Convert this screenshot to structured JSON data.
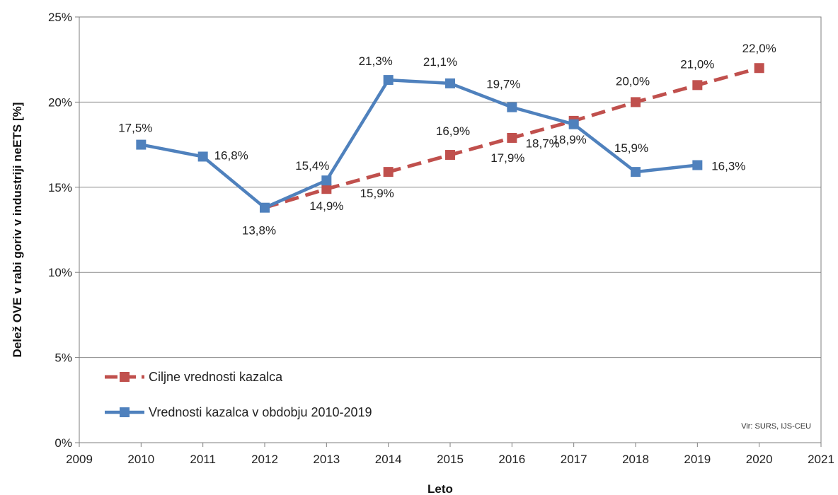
{
  "chart_data": {
    "type": "line",
    "xlabel": "Leto",
    "ylabel": "Delež OVE v rabi goriv v industriji neETS [%]",
    "xlim": [
      2009,
      2021
    ],
    "ylim": [
      0,
      25
    ],
    "x_ticks": [
      "2009",
      "2010",
      "2011",
      "2012",
      "2013",
      "2014",
      "2015",
      "2016",
      "2017",
      "2018",
      "2019",
      "2020",
      "2021"
    ],
    "y_ticks": [
      "0%",
      "5%",
      "10%",
      "15%",
      "20%",
      "25%"
    ],
    "grid": true,
    "legend": "bottom-left",
    "source": "Vir: SURS, IJS-CEU",
    "series": [
      {
        "name": "Ciljne vrednosti kazalca",
        "color": "#c0504d",
        "style": "dashed",
        "x": [
          2012,
          2013,
          2014,
          2015,
          2016,
          2017,
          2018,
          2019,
          2020
        ],
        "values": [
          13.8,
          14.9,
          15.9,
          16.9,
          17.9,
          18.9,
          20.0,
          21.0,
          22.0
        ],
        "labels": [
          "",
          "14,9%",
          "15,9%",
          "16,9%",
          "17,9%",
          "18,9%",
          "20,0%",
          "21,0%",
          "22,0%"
        ]
      },
      {
        "name": "Vrednosti kazalca v obdobju 2010-2019",
        "color": "#4f81bd",
        "style": "solid",
        "x": [
          2010,
          2011,
          2012,
          2013,
          2014,
          2015,
          2016,
          2017,
          2018,
          2019
        ],
        "values": [
          17.5,
          16.8,
          13.8,
          15.4,
          21.3,
          21.1,
          19.7,
          18.7,
          15.9,
          16.3
        ],
        "labels": [
          "17,5%",
          "16,8%",
          "13,8%",
          "15,4%",
          "21,3%",
          "21,1%",
          "19,7%",
          "18,7%",
          "15,9%",
          "16,3%"
        ]
      }
    ]
  }
}
